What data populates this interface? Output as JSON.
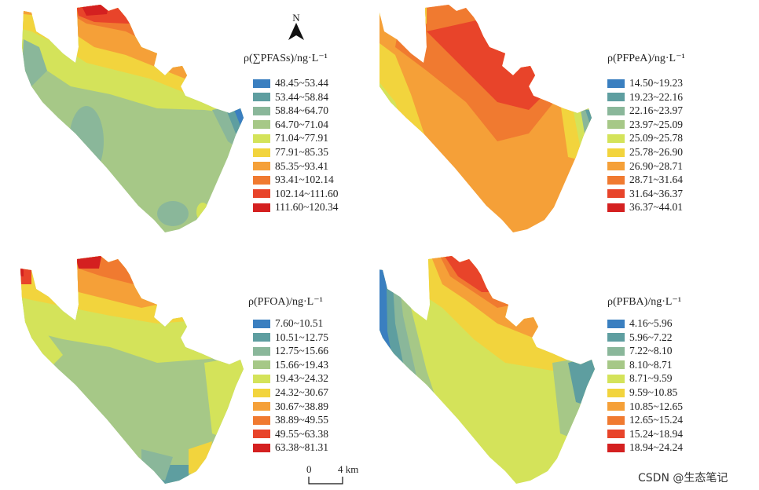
{
  "north_label": "N",
  "scale": {
    "zero": "0",
    "distance": "4 km"
  },
  "watermark": "CSDN @生态笔记",
  "panels": [
    {
      "key": "sum",
      "legend_title": "ρ(∑PFASs)/ng·L⁻¹",
      "classes": [
        {
          "label": "48.45~53.44",
          "color": "#3a7fc0"
        },
        {
          "label": "53.44~58.84",
          "color": "#5e9ea0"
        },
        {
          "label": "58.84~64.70",
          "color": "#8ab79a"
        },
        {
          "label": "64.70~71.04",
          "color": "#a6c887"
        },
        {
          "label": "71.04~77.91",
          "color": "#d4e35a"
        },
        {
          "label": "77.91~85.35",
          "color": "#f2d43d"
        },
        {
          "label": "85.35~93.41",
          "color": "#f5a038"
        },
        {
          "label": "93.41~102.14",
          "color": "#f07a30"
        },
        {
          "label": "102.14~111.60",
          "color": "#e8442a"
        },
        {
          "label": "111.60~120.34",
          "color": "#d42020"
        }
      ]
    },
    {
      "key": "pfpea",
      "legend_title": "ρ(PFPeA)/ng·L⁻¹",
      "classes": [
        {
          "label": "14.50~19.23",
          "color": "#3a7fc0"
        },
        {
          "label": "19.23~22.16",
          "color": "#5e9ea0"
        },
        {
          "label": "22.16~23.97",
          "color": "#8ab79a"
        },
        {
          "label": "23.97~25.09",
          "color": "#a6c887"
        },
        {
          "label": "25.09~25.78",
          "color": "#d4e35a"
        },
        {
          "label": "25.78~26.90",
          "color": "#f2d43d"
        },
        {
          "label": "26.90~28.71",
          "color": "#f5a038"
        },
        {
          "label": "28.71~31.64",
          "color": "#f07a30"
        },
        {
          "label": "31.64~36.37",
          "color": "#e8442a"
        },
        {
          "label": "36.37~44.01",
          "color": "#d42020"
        }
      ]
    },
    {
      "key": "pfoa",
      "legend_title": "ρ(PFOA)/ng·L⁻¹",
      "classes": [
        {
          "label": "7.60~10.51",
          "color": "#3a7fc0"
        },
        {
          "label": "10.51~12.75",
          "color": "#5e9ea0"
        },
        {
          "label": "12.75~15.66",
          "color": "#8ab79a"
        },
        {
          "label": "15.66~19.43",
          "color": "#a6c887"
        },
        {
          "label": "19.43~24.32",
          "color": "#d4e35a"
        },
        {
          "label": "24.32~30.67",
          "color": "#f2d43d"
        },
        {
          "label": "30.67~38.89",
          "color": "#f5a038"
        },
        {
          "label": "38.89~49.55",
          "color": "#f07a30"
        },
        {
          "label": "49.55~63.38",
          "color": "#e8442a"
        },
        {
          "label": "63.38~81.31",
          "color": "#d42020"
        }
      ]
    },
    {
      "key": "pfba",
      "legend_title": "ρ(PFBA)/ng·L⁻¹",
      "classes": [
        {
          "label": "4.16~5.96",
          "color": "#3a7fc0"
        },
        {
          "label": "5.96~7.22",
          "color": "#5e9ea0"
        },
        {
          "label": "7.22~8.10",
          "color": "#8ab79a"
        },
        {
          "label": "8.10~8.71",
          "color": "#a6c887"
        },
        {
          "label": "8.71~9.59",
          "color": "#d4e35a"
        },
        {
          "label": "9.59~10.85",
          "color": "#f2d43d"
        },
        {
          "label": "10.85~12.65",
          "color": "#f5a038"
        },
        {
          "label": "12.65~15.24",
          "color": "#f07a30"
        },
        {
          "label": "15.24~18.94",
          "color": "#e8442a"
        },
        {
          "label": "18.94~24.24",
          "color": "#d42020"
        }
      ]
    }
  ]
}
